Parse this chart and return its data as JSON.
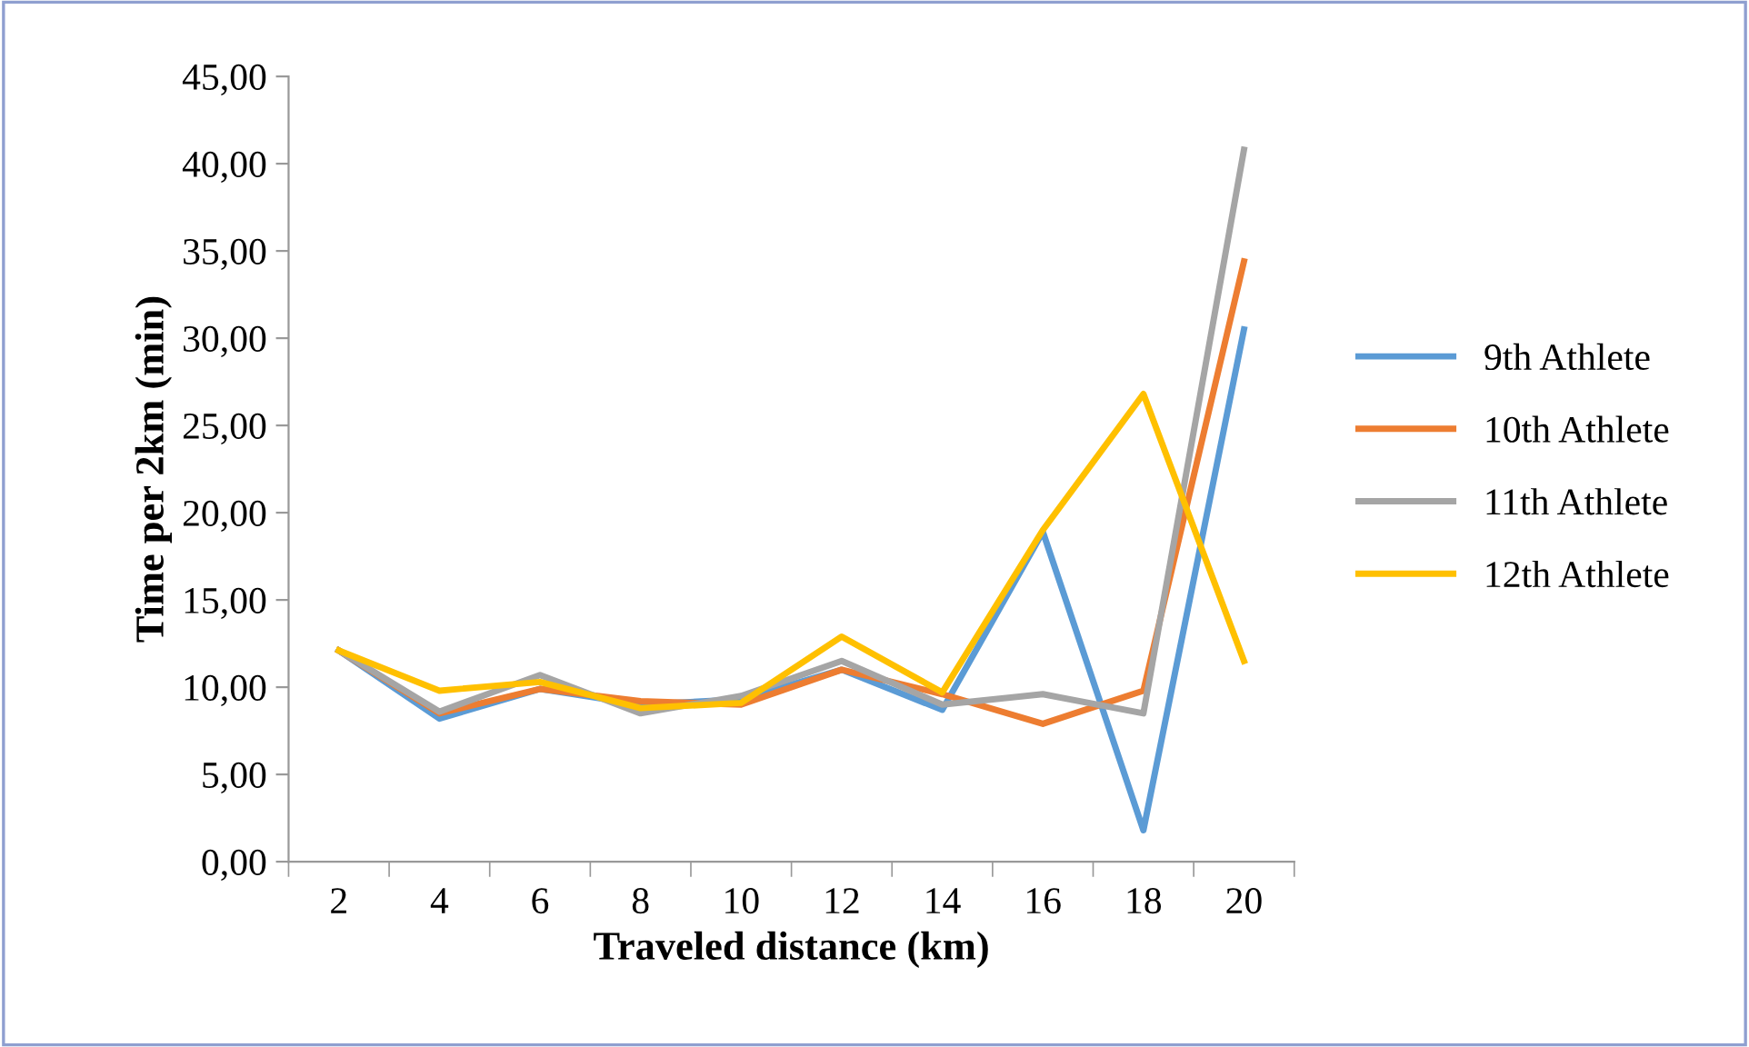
{
  "chart_data": {
    "type": "line",
    "xlabel": "Traveled distance (km)",
    "ylabel": "Time per 2km (min)",
    "categories": [
      "2",
      "4",
      "6",
      "8",
      "10",
      "12",
      "14",
      "16",
      "18",
      "20"
    ],
    "series": [
      {
        "name": "9th Athlete",
        "color": "#5b9bd5",
        "values": [
          12.1,
          8.2,
          9.9,
          9.0,
          9.3,
          11.0,
          8.7,
          18.9,
          1.8,
          30.5
        ]
      },
      {
        "name": "10th Athlete",
        "color": "#ed7d31",
        "values": [
          12.1,
          8.5,
          9.9,
          9.2,
          9.0,
          11.0,
          9.6,
          7.9,
          9.8,
          34.4
        ]
      },
      {
        "name": "11th Athlete",
        "color": "#a5a5a5",
        "values": [
          12.1,
          8.6,
          10.7,
          8.5,
          9.5,
          11.5,
          9.0,
          9.6,
          8.5,
          40.8
        ]
      },
      {
        "name": "12th Athlete",
        "color": "#ffc000",
        "values": [
          12.1,
          9.8,
          10.3,
          8.8,
          9.1,
          12.9,
          9.7,
          19.0,
          26.8,
          11.5
        ]
      }
    ],
    "ylim": [
      0,
      45
    ],
    "yticks": [
      {
        "value": 0,
        "label": "0,00"
      },
      {
        "value": 5,
        "label": "5,00"
      },
      {
        "value": 10,
        "label": "10,00"
      },
      {
        "value": 15,
        "label": "15,00"
      },
      {
        "value": 20,
        "label": "20,00"
      },
      {
        "value": 25,
        "label": "25,00"
      },
      {
        "value": 30,
        "label": "30,00"
      },
      {
        "value": 35,
        "label": "35,00"
      },
      {
        "value": 40,
        "label": "40,00"
      },
      {
        "value": 45,
        "label": "45,00"
      }
    ],
    "grid": false,
    "legend": "right",
    "marker": "none",
    "line_style": "solid"
  }
}
